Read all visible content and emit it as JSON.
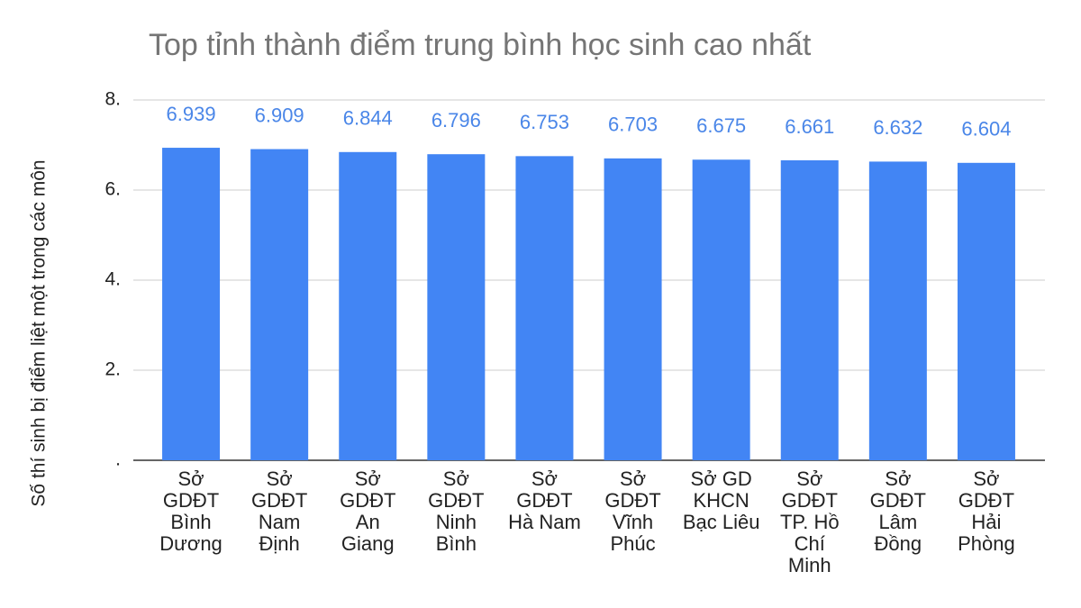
{
  "chart_data": {
    "type": "bar",
    "title": "Top tỉnh thành điểm trung bình học sinh cao nhất",
    "y_label": "Số thí sinh bị điểm liệt một trong các môn",
    "categories": [
      "Sở GDĐT Bình Dương",
      "Sở GDĐT Nam Định",
      "Sở GDĐT An Giang",
      "Sở GDĐT Ninh Bình",
      "Sở GDĐT Hà Nam",
      "Sở GDĐT Vĩnh Phúc",
      "Sở GD KHCN Bạc Liêu",
      "Sở GDĐT TP. Hồ Chí Minh",
      "Sở GDĐT Lâm Đồng",
      "Sở GDĐT Hải Phòng"
    ],
    "values": [
      6.939,
      6.909,
      6.844,
      6.796,
      6.753,
      6.703,
      6.675,
      6.661,
      6.632,
      6.604
    ],
    "color": "#4285f4",
    "label_color": "#4a86e8",
    "ylim": [
      0,
      8
    ],
    "yticks": [
      {
        "value": 0,
        "label": "."
      },
      {
        "value": 2,
        "label": "2."
      },
      {
        "value": 4,
        "label": "4."
      },
      {
        "value": 6,
        "label": "6."
      },
      {
        "value": 8,
        "label": "8."
      }
    ],
    "grid": true
  }
}
